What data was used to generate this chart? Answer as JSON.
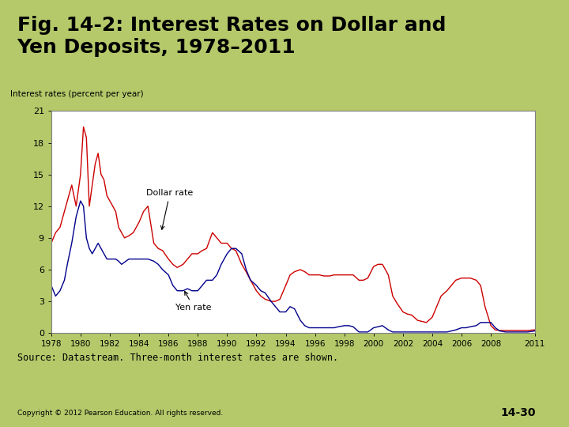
{
  "title": "Fig. 14-2: Interest Rates on Dollar and\nYen Deposits, 1978–2011",
  "ylabel": "Interest rates (percent per year)",
  "source_text": "Source: Datastream. Three-month interest rates are shown.",
  "copyright_text": "Copyright © 2012 Pearson Education. All rights reserved.",
  "page_num": "14-30",
  "bg_color": "#b5c96a",
  "plot_bg": "#ffffff",
  "dollar_color": "#cc0000",
  "yen_color": "#00008b",
  "dollar_label": "Dollar rate",
  "yen_label": "Yen rate",
  "xlim": [
    1978,
    2011
  ],
  "ylim": [
    0,
    21
  ],
  "yticks": [
    0,
    3,
    6,
    9,
    12,
    15,
    18,
    21
  ],
  "xticks": [
    1978,
    1980,
    1982,
    1984,
    1986,
    1988,
    1990,
    1992,
    1994,
    1996,
    1998,
    2000,
    2002,
    2004,
    2006,
    2008,
    2011
  ],
  "dollar_x": [
    1978.0,
    1978.3,
    1978.6,
    1978.9,
    1979.1,
    1979.4,
    1979.7,
    1980.0,
    1980.2,
    1980.4,
    1980.6,
    1980.8,
    1981.0,
    1981.2,
    1981.4,
    1981.6,
    1981.8,
    1982.0,
    1982.2,
    1982.4,
    1982.6,
    1982.8,
    1983.0,
    1983.3,
    1983.6,
    1984.0,
    1984.3,
    1984.6,
    1985.0,
    1985.3,
    1985.6,
    1986.0,
    1986.3,
    1986.6,
    1987.0,
    1987.3,
    1987.6,
    1988.0,
    1988.3,
    1988.6,
    1989.0,
    1989.3,
    1989.6,
    1990.0,
    1990.3,
    1990.6,
    1991.0,
    1991.3,
    1991.6,
    1992.0,
    1992.3,
    1992.6,
    1993.0,
    1993.3,
    1993.6,
    1994.0,
    1994.3,
    1994.6,
    1995.0,
    1995.3,
    1995.6,
    1996.0,
    1996.3,
    1996.6,
    1997.0,
    1997.3,
    1997.6,
    1998.0,
    1998.3,
    1998.6,
    1999.0,
    1999.3,
    1999.6,
    2000.0,
    2000.3,
    2000.6,
    2001.0,
    2001.3,
    2001.6,
    2002.0,
    2002.3,
    2002.6,
    2003.0,
    2003.3,
    2003.6,
    2004.0,
    2004.3,
    2004.6,
    2005.0,
    2005.3,
    2005.6,
    2006.0,
    2006.3,
    2006.6,
    2007.0,
    2007.3,
    2007.6,
    2008.0,
    2008.3,
    2008.6,
    2009.0,
    2009.3,
    2009.6,
    2010.0,
    2010.5,
    2011.0
  ],
  "dollar_y": [
    8.5,
    9.5,
    10.0,
    11.5,
    12.5,
    14.0,
    12.0,
    15.0,
    19.5,
    18.5,
    12.0,
    14.0,
    16.0,
    17.0,
    15.0,
    14.5,
    13.0,
    12.5,
    12.0,
    11.5,
    10.0,
    9.5,
    9.0,
    9.2,
    9.5,
    10.5,
    11.5,
    12.0,
    8.5,
    8.0,
    7.8,
    7.0,
    6.5,
    6.2,
    6.5,
    7.0,
    7.5,
    7.5,
    7.8,
    8.0,
    9.5,
    9.0,
    8.5,
    8.5,
    8.0,
    7.8,
    6.5,
    5.8,
    5.0,
    4.0,
    3.5,
    3.2,
    3.0,
    3.0,
    3.2,
    4.5,
    5.5,
    5.8,
    6.0,
    5.8,
    5.5,
    5.5,
    5.5,
    5.4,
    5.4,
    5.5,
    5.5,
    5.5,
    5.5,
    5.5,
    5.0,
    5.0,
    5.2,
    6.3,
    6.5,
    6.5,
    5.5,
    3.5,
    2.8,
    2.0,
    1.8,
    1.7,
    1.2,
    1.1,
    1.0,
    1.5,
    2.5,
    3.5,
    4.0,
    4.5,
    5.0,
    5.2,
    5.2,
    5.2,
    5.0,
    4.5,
    2.5,
    0.7,
    0.3,
    0.25,
    0.25,
    0.25,
    0.25,
    0.25,
    0.25,
    0.3
  ],
  "yen_x": [
    1978.0,
    1978.3,
    1978.6,
    1978.9,
    1979.1,
    1979.4,
    1979.7,
    1980.0,
    1980.2,
    1980.4,
    1980.6,
    1980.8,
    1981.0,
    1981.2,
    1981.4,
    1981.6,
    1981.8,
    1982.0,
    1982.2,
    1982.4,
    1982.6,
    1982.8,
    1983.0,
    1983.3,
    1983.6,
    1984.0,
    1984.3,
    1984.6,
    1985.0,
    1985.3,
    1985.6,
    1986.0,
    1986.3,
    1986.6,
    1987.0,
    1987.3,
    1987.6,
    1988.0,
    1988.3,
    1988.6,
    1989.0,
    1989.3,
    1989.6,
    1990.0,
    1990.3,
    1990.6,
    1991.0,
    1991.3,
    1991.6,
    1992.0,
    1992.3,
    1992.6,
    1993.0,
    1993.3,
    1993.6,
    1994.0,
    1994.3,
    1994.6,
    1995.0,
    1995.3,
    1995.6,
    1996.0,
    1996.3,
    1996.6,
    1997.0,
    1997.3,
    1997.6,
    1998.0,
    1998.3,
    1998.6,
    1999.0,
    1999.3,
    1999.6,
    2000.0,
    2000.3,
    2000.6,
    2001.0,
    2001.3,
    2001.6,
    2002.0,
    2002.3,
    2002.6,
    2003.0,
    2003.3,
    2003.6,
    2004.0,
    2004.3,
    2004.6,
    2005.0,
    2005.3,
    2005.6,
    2006.0,
    2006.3,
    2006.6,
    2007.0,
    2007.3,
    2007.6,
    2008.0,
    2008.3,
    2008.6,
    2009.0,
    2009.3,
    2009.6,
    2010.0,
    2010.5,
    2011.0
  ],
  "yen_y": [
    4.5,
    3.5,
    4.0,
    5.0,
    6.5,
    8.5,
    11.0,
    12.5,
    12.0,
    9.0,
    8.0,
    7.5,
    8.0,
    8.5,
    8.0,
    7.5,
    7.0,
    7.0,
    7.0,
    7.0,
    6.8,
    6.5,
    6.7,
    7.0,
    7.0,
    7.0,
    7.0,
    7.0,
    6.8,
    6.5,
    6.0,
    5.5,
    4.5,
    4.0,
    4.0,
    4.2,
    4.0,
    4.0,
    4.5,
    5.0,
    5.0,
    5.5,
    6.5,
    7.5,
    8.0,
    8.0,
    7.5,
    6.0,
    5.0,
    4.5,
    4.0,
    3.8,
    3.0,
    2.5,
    2.0,
    2.0,
    2.5,
    2.3,
    1.2,
    0.7,
    0.5,
    0.5,
    0.5,
    0.5,
    0.5,
    0.5,
    0.6,
    0.7,
    0.7,
    0.6,
    0.1,
    0.1,
    0.1,
    0.5,
    0.6,
    0.7,
    0.3,
    0.1,
    0.1,
    0.1,
    0.1,
    0.1,
    0.1,
    0.1,
    0.1,
    0.1,
    0.1,
    0.1,
    0.1,
    0.2,
    0.3,
    0.5,
    0.5,
    0.6,
    0.7,
    1.0,
    1.0,
    1.0,
    0.5,
    0.2,
    0.1,
    0.1,
    0.1,
    0.1,
    0.1,
    0.2
  ]
}
